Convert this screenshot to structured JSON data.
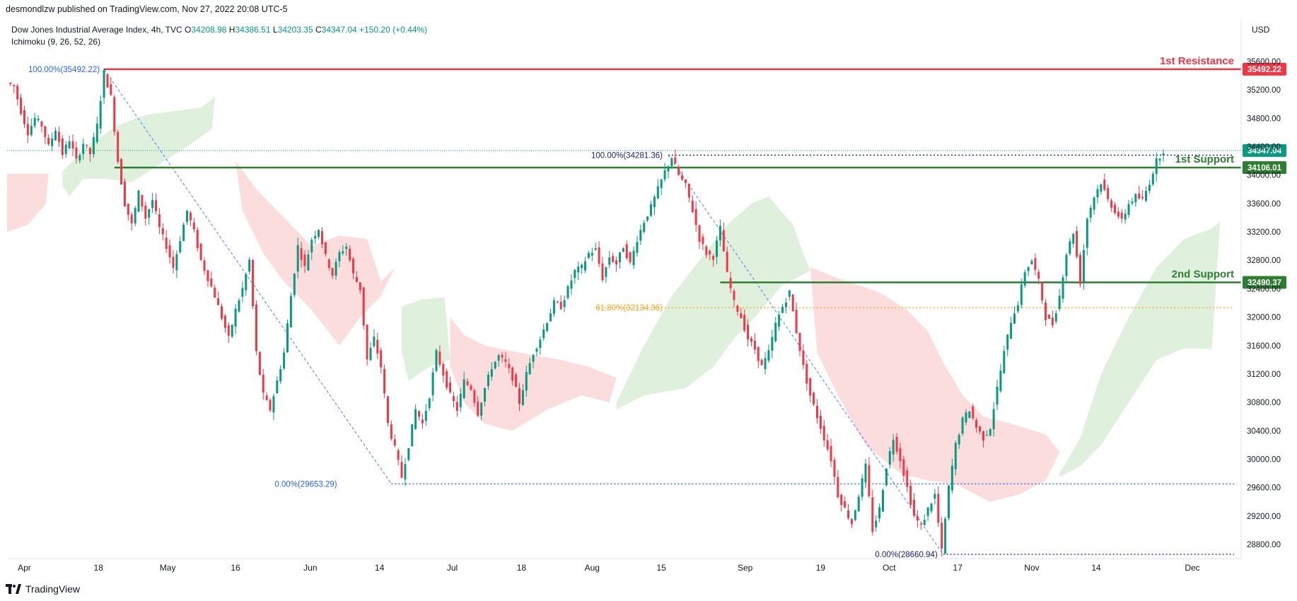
{
  "header": {
    "published_by": "desmondlzw published on TradingView.com, Nov 27, 2022 20:08 UTC-5"
  },
  "legend": {
    "symbol": "Dow Jones Industrial Average Index, 4h, TVC",
    "open_k": "O",
    "open": "34208.98",
    "high_k": "H",
    "high": "34386.51",
    "low_k": "L",
    "low": "34203.35",
    "close_k": "C",
    "close": "34347.04",
    "change": "+150.20 (+0.44%)",
    "indicator": "Ichimoku (9, 26, 52, 26)"
  },
  "currency": "USD",
  "footer": {
    "brand": "TradingView"
  },
  "colors": {
    "up": "#089981",
    "down": "#f23645",
    "resistance": "#f23645",
    "support": "#2e7d32",
    "fib_blue": "#2962ff",
    "fib_orange": "#f5a623",
    "cloud_green": "#dcefd9",
    "cloud_red": "#fcd9d9"
  },
  "chart_data": {
    "type": "candlestick",
    "timeframe": "4h",
    "x_ticks": [
      "Apr",
      "18",
      "May",
      "16",
      "Jun",
      "14",
      "Jul",
      "18",
      "Aug",
      "15",
      "Sep",
      "19",
      "Oct",
      "17",
      "Nov",
      "14",
      "Dec"
    ],
    "y_ticks": [
      35600,
      35200,
      34800,
      34400,
      34000,
      33600,
      33200,
      32800,
      32400,
      32000,
      31600,
      31200,
      30800,
      30400,
      30000,
      29600,
      29200,
      28800
    ],
    "ylim": [
      28580,
      35700
    ],
    "price_tags": [
      "35492.22",
      "34347.04",
      "34106.01",
      "32490.37"
    ],
    "levels": [
      {
        "name": "1st Resistance",
        "value": 35492.22
      },
      {
        "name": "1st Support",
        "value": 34106.01
      },
      {
        "name": "2nd Support",
        "value": 32490.37
      }
    ],
    "fib": [
      {
        "label": "100.00%(35492.22)",
        "value": 35492.22
      },
      {
        "label": "0.00%(29653.29)",
        "value": 29653.29
      },
      {
        "label": "100.00%(34281.36)",
        "value": 34281.36
      },
      {
        "label": "61.80%(32134.36)",
        "value": 32134.36
      },
      {
        "label": "0.00%(28660.94)",
        "value": 28660.94
      }
    ],
    "last_price": 34347.04,
    "path": [
      [
        0,
        35300
      ],
      [
        10,
        35250
      ],
      [
        20,
        34900
      ],
      [
        30,
        34600
      ],
      [
        40,
        34800
      ],
      [
        50,
        34700
      ],
      [
        60,
        34400
      ],
      [
        70,
        34650
      ],
      [
        80,
        34300
      ],
      [
        90,
        34500
      ],
      [
        100,
        34200
      ],
      [
        110,
        34450
      ],
      [
        120,
        34300
      ],
      [
        130,
        34700
      ],
      [
        140,
        35450
      ],
      [
        150,
        35100
      ],
      [
        160,
        34200
      ],
      [
        170,
        33600
      ],
      [
        180,
        33300
      ],
      [
        190,
        33750
      ],
      [
        200,
        33400
      ],
      [
        210,
        33650
      ],
      [
        220,
        33250
      ],
      [
        230,
        33000
      ],
      [
        240,
        32700
      ],
      [
        250,
        33100
      ],
      [
        260,
        33500
      ],
      [
        270,
        33200
      ],
      [
        280,
        32800
      ],
      [
        290,
        32550
      ],
      [
        300,
        32300
      ],
      [
        310,
        32000
      ],
      [
        320,
        31700
      ],
      [
        330,
        32100
      ],
      [
        340,
        32400
      ],
      [
        350,
        32800
      ],
      [
        360,
        31500
      ],
      [
        370,
        30900
      ],
      [
        380,
        30700
      ],
      [
        390,
        31100
      ],
      [
        400,
        31500
      ],
      [
        410,
        32300
      ],
      [
        420,
        33000
      ],
      [
        430,
        32700
      ],
      [
        440,
        33100
      ],
      [
        450,
        33250
      ],
      [
        460,
        32850
      ],
      [
        470,
        32600
      ],
      [
        480,
        32900
      ],
      [
        490,
        33000
      ],
      [
        500,
        32600
      ],
      [
        510,
        32400
      ],
      [
        520,
        31400
      ],
      [
        530,
        31700
      ],
      [
        540,
        31300
      ],
      [
        550,
        30500
      ],
      [
        560,
        30150
      ],
      [
        570,
        29750
      ],
      [
        580,
        30200
      ],
      [
        590,
        30700
      ],
      [
        600,
        30500
      ],
      [
        610,
        30900
      ],
      [
        620,
        31500
      ],
      [
        630,
        31200
      ],
      [
        640,
        30900
      ],
      [
        650,
        30700
      ],
      [
        660,
        31100
      ],
      [
        670,
        31000
      ],
      [
        680,
        30650
      ],
      [
        690,
        31000
      ],
      [
        700,
        31300
      ],
      [
        710,
        31450
      ],
      [
        720,
        31350
      ],
      [
        730,
        31150
      ],
      [
        740,
        30800
      ],
      [
        750,
        31200
      ],
      [
        760,
        31500
      ],
      [
        770,
        31700
      ],
      [
        780,
        31950
      ],
      [
        790,
        32200
      ],
      [
        800,
        32150
      ],
      [
        810,
        32400
      ],
      [
        820,
        32650
      ],
      [
        830,
        32700
      ],
      [
        840,
        32900
      ],
      [
        850,
        32950
      ],
      [
        860,
        32550
      ],
      [
        870,
        32850
      ],
      [
        880,
        32750
      ],
      [
        890,
        33000
      ],
      [
        900,
        32750
      ],
      [
        910,
        33100
      ],
      [
        920,
        33350
      ],
      [
        930,
        33550
      ],
      [
        940,
        33800
      ],
      [
        950,
        34050
      ],
      [
        960,
        34250
      ],
      [
        970,
        34000
      ],
      [
        980,
        33850
      ],
      [
        990,
        33500
      ],
      [
        1000,
        33100
      ],
      [
        1010,
        32900
      ],
      [
        1020,
        32850
      ],
      [
        1030,
        33250
      ],
      [
        1040,
        32600
      ],
      [
        1050,
        32200
      ],
      [
        1060,
        32000
      ],
      [
        1070,
        31700
      ],
      [
        1080,
        31550
      ],
      [
        1090,
        31300
      ],
      [
        1100,
        31500
      ],
      [
        1110,
        31900
      ],
      [
        1120,
        32150
      ],
      [
        1130,
        32350
      ],
      [
        1140,
        31800
      ],
      [
        1150,
        31300
      ],
      [
        1160,
        30900
      ],
      [
        1170,
        30600
      ],
      [
        1180,
        30300
      ],
      [
        1190,
        30000
      ],
      [
        1200,
        29500
      ],
      [
        1210,
        29300
      ],
      [
        1220,
        29100
      ],
      [
        1230,
        29500
      ],
      [
        1240,
        29900
      ],
      [
        1250,
        29000
      ],
      [
        1260,
        29300
      ],
      [
        1270,
        29900
      ],
      [
        1280,
        30300
      ],
      [
        1290,
        30000
      ],
      [
        1300,
        29600
      ],
      [
        1310,
        29200
      ],
      [
        1320,
        29050
      ],
      [
        1330,
        29300
      ],
      [
        1340,
        29500
      ],
      [
        1350,
        28700
      ],
      [
        1360,
        29600
      ],
      [
        1370,
        30200
      ],
      [
        1380,
        30550
      ],
      [
        1390,
        30700
      ],
      [
        1400,
        30450
      ],
      [
        1410,
        30300
      ],
      [
        1420,
        30450
      ],
      [
        1430,
        31000
      ],
      [
        1440,
        31500
      ],
      [
        1450,
        31950
      ],
      [
        1460,
        32200
      ],
      [
        1470,
        32650
      ],
      [
        1480,
        32800
      ],
      [
        1490,
        32500
      ],
      [
        1500,
        32000
      ],
      [
        1510,
        31900
      ],
      [
        1520,
        32300
      ],
      [
        1530,
        32900
      ],
      [
        1540,
        33200
      ],
      [
        1550,
        32500
      ],
      [
        1560,
        33400
      ],
      [
        1570,
        33700
      ],
      [
        1580,
        33900
      ],
      [
        1590,
        33650
      ],
      [
        1600,
        33500
      ],
      [
        1610,
        33350
      ],
      [
        1620,
        33600
      ],
      [
        1630,
        33700
      ],
      [
        1640,
        33650
      ],
      [
        1650,
        33900
      ],
      [
        1660,
        34200
      ],
      [
        1670,
        34347.04
      ]
    ],
    "cloud_green": [
      [
        [
          80,
          34050
        ],
        [
          120,
          34450
        ],
        [
          160,
          34700
        ],
        [
          200,
          34850
        ],
        [
          240,
          34900
        ],
        [
          280,
          34950
        ],
        [
          300,
          35100
        ],
        [
          296,
          34650
        ],
        [
          260,
          34400
        ],
        [
          220,
          34150
        ],
        [
          180,
          33900
        ],
        [
          140,
          33950
        ],
        [
          110,
          33950
        ],
        [
          90,
          33700
        ],
        [
          80,
          33850
        ]
      ],
      [
        [
          570,
          32150
        ],
        [
          600,
          32250
        ],
        [
          632,
          32280
        ],
        [
          640,
          31400
        ],
        [
          610,
          31300
        ],
        [
          580,
          31100
        ],
        [
          570,
          31500
        ]
      ],
      [
        [
          880,
          30800
        ],
        [
          920,
          31600
        ],
        [
          960,
          32300
        ],
        [
          1000,
          32800
        ],
        [
          1040,
          33300
        ],
        [
          1075,
          33600
        ],
        [
          1100,
          33700
        ],
        [
          1135,
          33300
        ],
        [
          1150,
          32900
        ],
        [
          1160,
          32650
        ],
        [
          1120,
          32450
        ],
        [
          1080,
          32000
        ],
        [
          1050,
          31700
        ],
        [
          1020,
          31300
        ],
        [
          980,
          31000
        ],
        [
          920,
          30900
        ],
        [
          880,
          30700
        ]
      ],
      [
        [
          1520,
          29800
        ],
        [
          1550,
          30300
        ],
        [
          1580,
          31200
        ],
        [
          1620,
          32000
        ],
        [
          1660,
          32700
        ],
        [
          1700,
          33100
        ],
        [
          1740,
          33250
        ],
        [
          1752,
          33350
        ],
        [
          1740,
          31550
        ],
        [
          1700,
          31560
        ],
        [
          1660,
          31400
        ],
        [
          1620,
          30800
        ],
        [
          1580,
          30200
        ],
        [
          1550,
          29900
        ],
        [
          1520,
          29750
        ]
      ]
    ],
    "cloud_red": [
      [
        [
          0,
          34020
        ],
        [
          60,
          34020
        ],
        [
          56,
          33600
        ],
        [
          30,
          33300
        ],
        [
          0,
          33200
        ]
      ],
      [
        [
          330,
          34200
        ],
        [
          360,
          33800
        ],
        [
          400,
          33400
        ],
        [
          440,
          33000
        ],
        [
          480,
          33150
        ],
        [
          520,
          33100
        ],
        [
          540,
          32500
        ],
        [
          560,
          32700
        ],
        [
          540,
          32300
        ],
        [
          510,
          32000
        ],
        [
          480,
          31600
        ],
        [
          440,
          32100
        ],
        [
          400,
          32500
        ],
        [
          370,
          32900
        ],
        [
          340,
          33500
        ]
      ],
      [
        [
          640,
          32000
        ],
        [
          660,
          31750
        ],
        [
          690,
          31600
        ],
        [
          740,
          31500
        ],
        [
          800,
          31400
        ],
        [
          840,
          31300
        ],
        [
          880,
          31150
        ],
        [
          870,
          30800
        ],
        [
          830,
          30900
        ],
        [
          780,
          30700
        ],
        [
          730,
          30400
        ],
        [
          690,
          30500
        ],
        [
          660,
          30800
        ],
        [
          640,
          31300
        ]
      ],
      [
        [
          1160,
          32700
        ],
        [
          1200,
          32550
        ],
        [
          1260,
          32350
        ],
        [
          1300,
          32100
        ],
        [
          1330,
          31800
        ],
        [
          1350,
          31400
        ],
        [
          1380,
          30900
        ],
        [
          1410,
          30600
        ],
        [
          1450,
          30500
        ],
        [
          1500,
          30350
        ],
        [
          1520,
          30100
        ],
        [
          1500,
          29700
        ],
        [
          1460,
          29500
        ],
        [
          1420,
          29400
        ],
        [
          1370,
          29650
        ],
        [
          1330,
          29700
        ],
        [
          1290,
          29800
        ],
        [
          1240,
          30200
        ],
        [
          1200,
          30900
        ],
        [
          1170,
          31500
        ]
      ]
    ]
  }
}
